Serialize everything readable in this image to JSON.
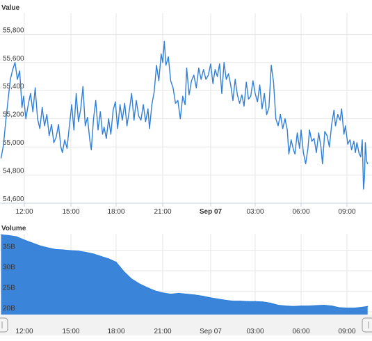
{
  "chart_data": [
    {
      "type": "line",
      "title": "Value",
      "ylim": [
        54600,
        55950
      ],
      "y_ticks": [
        54600,
        54800,
        55000,
        55200,
        55400,
        55600,
        55800
      ],
      "y_tick_labels": [
        "54,600",
        "54,800",
        "55,000",
        "55,200",
        "55,400",
        "55,600",
        "55,800"
      ],
      "x_range": [
        10.5,
        34.35
      ],
      "x_ticks": [
        {
          "x": 12,
          "label": "12:00",
          "bold": false
        },
        {
          "x": 15,
          "label": "15:00",
          "bold": false
        },
        {
          "x": 18,
          "label": "18:00",
          "bold": false
        },
        {
          "x": 21,
          "label": "21:00",
          "bold": false
        },
        {
          "x": 24,
          "label": "Sep 07",
          "bold": true
        },
        {
          "x": 27,
          "label": "03:00",
          "bold": false
        },
        {
          "x": 30,
          "label": "06:00",
          "bold": false
        },
        {
          "x": 33,
          "label": "09:00",
          "bold": false
        }
      ],
      "series": [
        {
          "color": "#2f7ed8",
          "points": [
            [
              10.5,
              54920
            ],
            [
              10.65,
              55010
            ],
            [
              10.8,
              55180
            ],
            [
              10.95,
              55330
            ],
            [
              11.1,
              55480
            ],
            [
              11.25,
              55550
            ],
            [
              11.4,
              55600
            ],
            [
              11.55,
              55480
            ],
            [
              11.7,
              55540
            ],
            [
              11.85,
              55280
            ],
            [
              11.95,
              55360
            ],
            [
              12.1,
              55200
            ],
            [
              12.25,
              55300
            ],
            [
              12.4,
              55380
            ],
            [
              12.55,
              55250
            ],
            [
              12.7,
              55420
            ],
            [
              12.85,
              55200
            ],
            [
              13.0,
              55130
            ],
            [
              13.15,
              55280
            ],
            [
              13.3,
              55150
            ],
            [
              13.45,
              55230
            ],
            [
              13.6,
              55080
            ],
            [
              13.75,
              55160
            ],
            [
              13.9,
              55030
            ],
            [
              14.05,
              55070
            ],
            [
              14.2,
              55160
            ],
            [
              14.35,
              55000
            ],
            [
              14.45,
              54960
            ],
            [
              14.6,
              55050
            ],
            [
              14.75,
              54990
            ],
            [
              14.9,
              55150
            ],
            [
              15.05,
              55300
            ],
            [
              15.2,
              55120
            ],
            [
              15.35,
              55380
            ],
            [
              15.5,
              55180
            ],
            [
              15.65,
              55270
            ],
            [
              15.8,
              55430
            ],
            [
              15.95,
              55150
            ],
            [
              16.1,
              55210
            ],
            [
              16.25,
              55050
            ],
            [
              16.35,
              54980
            ],
            [
              16.5,
              55200
            ],
            [
              16.65,
              55330
            ],
            [
              16.8,
              55120
            ],
            [
              16.95,
              55250
            ],
            [
              17.1,
              55090
            ],
            [
              17.2,
              55140
            ],
            [
              17.35,
              55060
            ],
            [
              17.5,
              55200
            ],
            [
              17.65,
              55090
            ],
            [
              17.8,
              55260
            ],
            [
              17.95,
              55320
            ],
            [
              18.1,
              55130
            ],
            [
              18.25,
              55300
            ],
            [
              18.4,
              55190
            ],
            [
              18.55,
              55310
            ],
            [
              18.7,
              55150
            ],
            [
              18.85,
              55260
            ],
            [
              19.0,
              55380
            ],
            [
              19.15,
              55190
            ],
            [
              19.3,
              55330
            ],
            [
              19.45,
              55220
            ],
            [
              19.6,
              55190
            ],
            [
              19.75,
              55300
            ],
            [
              19.9,
              55180
            ],
            [
              20.05,
              55270
            ],
            [
              20.15,
              55130
            ],
            [
              20.3,
              55300
            ],
            [
              20.45,
              55390
            ],
            [
              20.6,
              55580
            ],
            [
              20.75,
              55470
            ],
            [
              20.9,
              55660
            ],
            [
              21.0,
              55600
            ],
            [
              21.1,
              55750
            ],
            [
              21.2,
              55580
            ],
            [
              21.35,
              55640
            ],
            [
              21.5,
              55470
            ],
            [
              21.65,
              55420
            ],
            [
              21.8,
              55310
            ],
            [
              21.95,
              55330
            ],
            [
              22.1,
              55200
            ],
            [
              22.25,
              55360
            ],
            [
              22.4,
              55300
            ],
            [
              22.5,
              55560
            ],
            [
              22.65,
              55370
            ],
            [
              22.8,
              55470
            ],
            [
              22.95,
              55510
            ],
            [
              23.1,
              55420
            ],
            [
              23.25,
              55560
            ],
            [
              23.4,
              55480
            ],
            [
              23.55,
              55550
            ],
            [
              23.7,
              55480
            ],
            [
              23.85,
              55510
            ],
            [
              24.0,
              55590
            ],
            [
              24.15,
              55450
            ],
            [
              24.3,
              55550
            ],
            [
              24.45,
              55500
            ],
            [
              24.6,
              55590
            ],
            [
              24.75,
              55380
            ],
            [
              24.9,
              55600
            ],
            [
              25.05,
              55480
            ],
            [
              25.2,
              55520
            ],
            [
              25.35,
              55440
            ],
            [
              25.5,
              55330
            ],
            [
              25.65,
              55480
            ],
            [
              25.8,
              55370
            ],
            [
              25.95,
              55310
            ],
            [
              26.1,
              55370
            ],
            [
              26.25,
              55290
            ],
            [
              26.4,
              55460
            ],
            [
              26.55,
              55340
            ],
            [
              26.7,
              55360
            ],
            [
              26.85,
              55470
            ],
            [
              27.0,
              55380
            ],
            [
              27.15,
              55320
            ],
            [
              27.3,
              55440
            ],
            [
              27.45,
              55270
            ],
            [
              27.6,
              55380
            ],
            [
              27.75,
              55230
            ],
            [
              27.9,
              55280
            ],
            [
              28.05,
              55580
            ],
            [
              28.2,
              55460
            ],
            [
              28.35,
              55200
            ],
            [
              28.5,
              55150
            ],
            [
              28.65,
              55230
            ],
            [
              28.8,
              55130
            ],
            [
              28.95,
              55200
            ],
            [
              29.1,
              55120
            ],
            [
              29.2,
              54950
            ],
            [
              29.35,
              55050
            ],
            [
              29.5,
              54980
            ],
            [
              29.6,
              54950
            ],
            [
              29.75,
              55100
            ],
            [
              29.9,
              54990
            ],
            [
              30.0,
              55120
            ],
            [
              30.15,
              54960
            ],
            [
              30.3,
              54880
            ],
            [
              30.45,
              54990
            ],
            [
              30.55,
              55120
            ],
            [
              30.7,
              55040
            ],
            [
              30.85,
              55060
            ],
            [
              31.0,
              54960
            ],
            [
              31.15,
              55100
            ],
            [
              31.3,
              55000
            ],
            [
              31.4,
              54880
            ],
            [
              31.55,
              55110
            ],
            [
              31.7,
              55080
            ],
            [
              31.85,
              55000
            ],
            [
              32.0,
              55160
            ],
            [
              32.15,
              55260
            ],
            [
              32.25,
              55150
            ],
            [
              32.4,
              55230
            ],
            [
              32.55,
              55190
            ],
            [
              32.65,
              55270
            ],
            [
              32.8,
              55090
            ],
            [
              32.9,
              55150
            ],
            [
              33.05,
              55020
            ],
            [
              33.2,
              55050
            ],
            [
              33.3,
              54980
            ],
            [
              33.45,
              55040
            ],
            [
              33.55,
              54960
            ],
            [
              33.65,
              55030
            ],
            [
              33.8,
              54950
            ],
            [
              33.9,
              54930
            ],
            [
              34.0,
              55050
            ],
            [
              34.08,
              54700
            ],
            [
              34.15,
              54790
            ],
            [
              34.2,
              55030
            ],
            [
              34.28,
              54900
            ],
            [
              34.35,
              54880
            ]
          ]
        }
      ]
    },
    {
      "type": "area",
      "title": "Volume",
      "ylim": [
        19.3,
        39
      ],
      "y_ticks": [
        20,
        25,
        30,
        35
      ],
      "y_tick_labels": [
        "20B",
        "25B",
        "30B",
        "35B"
      ],
      "x_range": [
        10.5,
        34.35
      ],
      "x_ticks": [
        {
          "x": 12,
          "label": "12:00"
        },
        {
          "x": 15,
          "label": "15:00"
        },
        {
          "x": 18,
          "label": "18:00"
        },
        {
          "x": 21,
          "label": "21:00"
        },
        {
          "x": 24,
          "label": "Sep 07"
        },
        {
          "x": 27,
          "label": "03:00"
        },
        {
          "x": 30,
          "label": "06:00"
        },
        {
          "x": 33,
          "label": "09:00"
        }
      ],
      "unit": "B",
      "series": [
        {
          "color": "#2f7ed8",
          "points": [
            [
              10.5,
              38.8
            ],
            [
              11.0,
              38.6
            ],
            [
              11.5,
              38.3
            ],
            [
              12.0,
              37.5
            ],
            [
              12.5,
              36.8
            ],
            [
              13.0,
              36.1
            ],
            [
              13.5,
              35.6
            ],
            [
              14.0,
              35.2
            ],
            [
              14.5,
              35.1
            ],
            [
              15.0,
              34.9
            ],
            [
              15.5,
              34.8
            ],
            [
              16.0,
              34.5
            ],
            [
              16.5,
              34.1
            ],
            [
              17.0,
              33.5
            ],
            [
              17.5,
              32.9
            ],
            [
              18.0,
              32.1
            ],
            [
              18.5,
              29.8
            ],
            [
              19.0,
              28.0
            ],
            [
              19.5,
              26.8
            ],
            [
              20.0,
              25.9
            ],
            [
              20.5,
              25.1
            ],
            [
              21.0,
              24.6
            ],
            [
              21.5,
              24.3
            ],
            [
              22.0,
              24.5
            ],
            [
              22.5,
              24.3
            ],
            [
              23.0,
              24.1
            ],
            [
              23.5,
              23.8
            ],
            [
              24.0,
              23.4
            ],
            [
              24.5,
              23.1
            ],
            [
              25.0,
              22.8
            ],
            [
              25.5,
              22.6
            ],
            [
              26.0,
              22.6
            ],
            [
              26.5,
              22.5
            ],
            [
              27.0,
              22.5
            ],
            [
              27.5,
              22.4
            ],
            [
              28.0,
              22.1
            ],
            [
              28.5,
              21.6
            ],
            [
              29.0,
              21.4
            ],
            [
              29.5,
              21.3
            ],
            [
              30.0,
              21.4
            ],
            [
              30.5,
              21.4
            ],
            [
              31.0,
              21.5
            ],
            [
              31.5,
              21.6
            ],
            [
              32.0,
              21.4
            ],
            [
              32.5,
              21.0
            ],
            [
              33.0,
              20.9
            ],
            [
              33.5,
              20.9
            ],
            [
              34.0,
              21.1
            ],
            [
              34.35,
              21.3
            ]
          ]
        }
      ]
    }
  ],
  "navigator": {
    "left_handle_icon": "handle-grip-icon",
    "right_handle_icon": "handle-grip-icon"
  }
}
